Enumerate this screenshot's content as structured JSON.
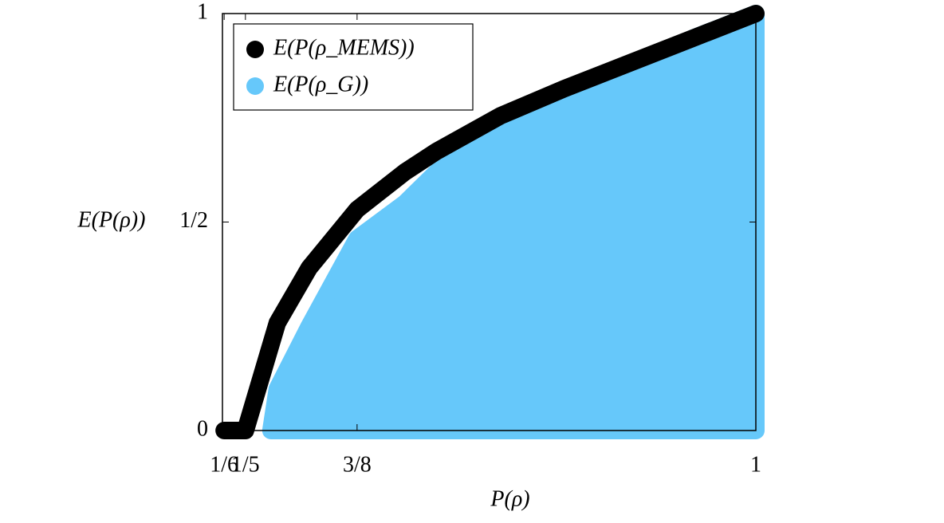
{
  "chart_data": {
    "type": "scatter",
    "xlabel": "P(ρ)",
    "ylabel": "E(P(ρ))",
    "xlim": [
      0.164,
      1
    ],
    "ylim": [
      0,
      1
    ],
    "xticks": [
      {
        "value": 0.1667,
        "label": "1/6"
      },
      {
        "value": 0.2,
        "label": "1/5"
      },
      {
        "value": 0.375,
        "label": "3/8"
      },
      1
    ],
    "yticks": [
      0,
      {
        "value": 0.5,
        "label": "1/2"
      },
      1
    ],
    "legend": "upper left",
    "series": [
      {
        "name": "E(P(ρ_MEMS))",
        "color": "#000000",
        "x": [
          0.1667,
          0.18,
          0.19,
          0.2,
          0.25,
          0.3,
          0.375,
          0.45,
          0.5,
          0.6,
          0.7,
          0.8,
          0.9,
          1.0
        ],
        "values": [
          0,
          0,
          0,
          0,
          0.258,
          0.39,
          0.53,
          0.62,
          0.67,
          0.755,
          0.82,
          0.88,
          0.94,
          1.0
        ]
      },
      {
        "name": "E(P(ρ_G))",
        "color": "#66c8fa",
        "x": [
          0.24,
          0.25,
          0.3,
          0.375,
          0.45,
          0.5,
          0.6,
          0.7,
          0.8,
          0.9,
          1.0
        ],
        "values": [
          0,
          0.1,
          0.25,
          0.46,
          0.545,
          0.62,
          0.72,
          0.8,
          0.87,
          0.94,
          1.0
        ]
      }
    ]
  }
}
